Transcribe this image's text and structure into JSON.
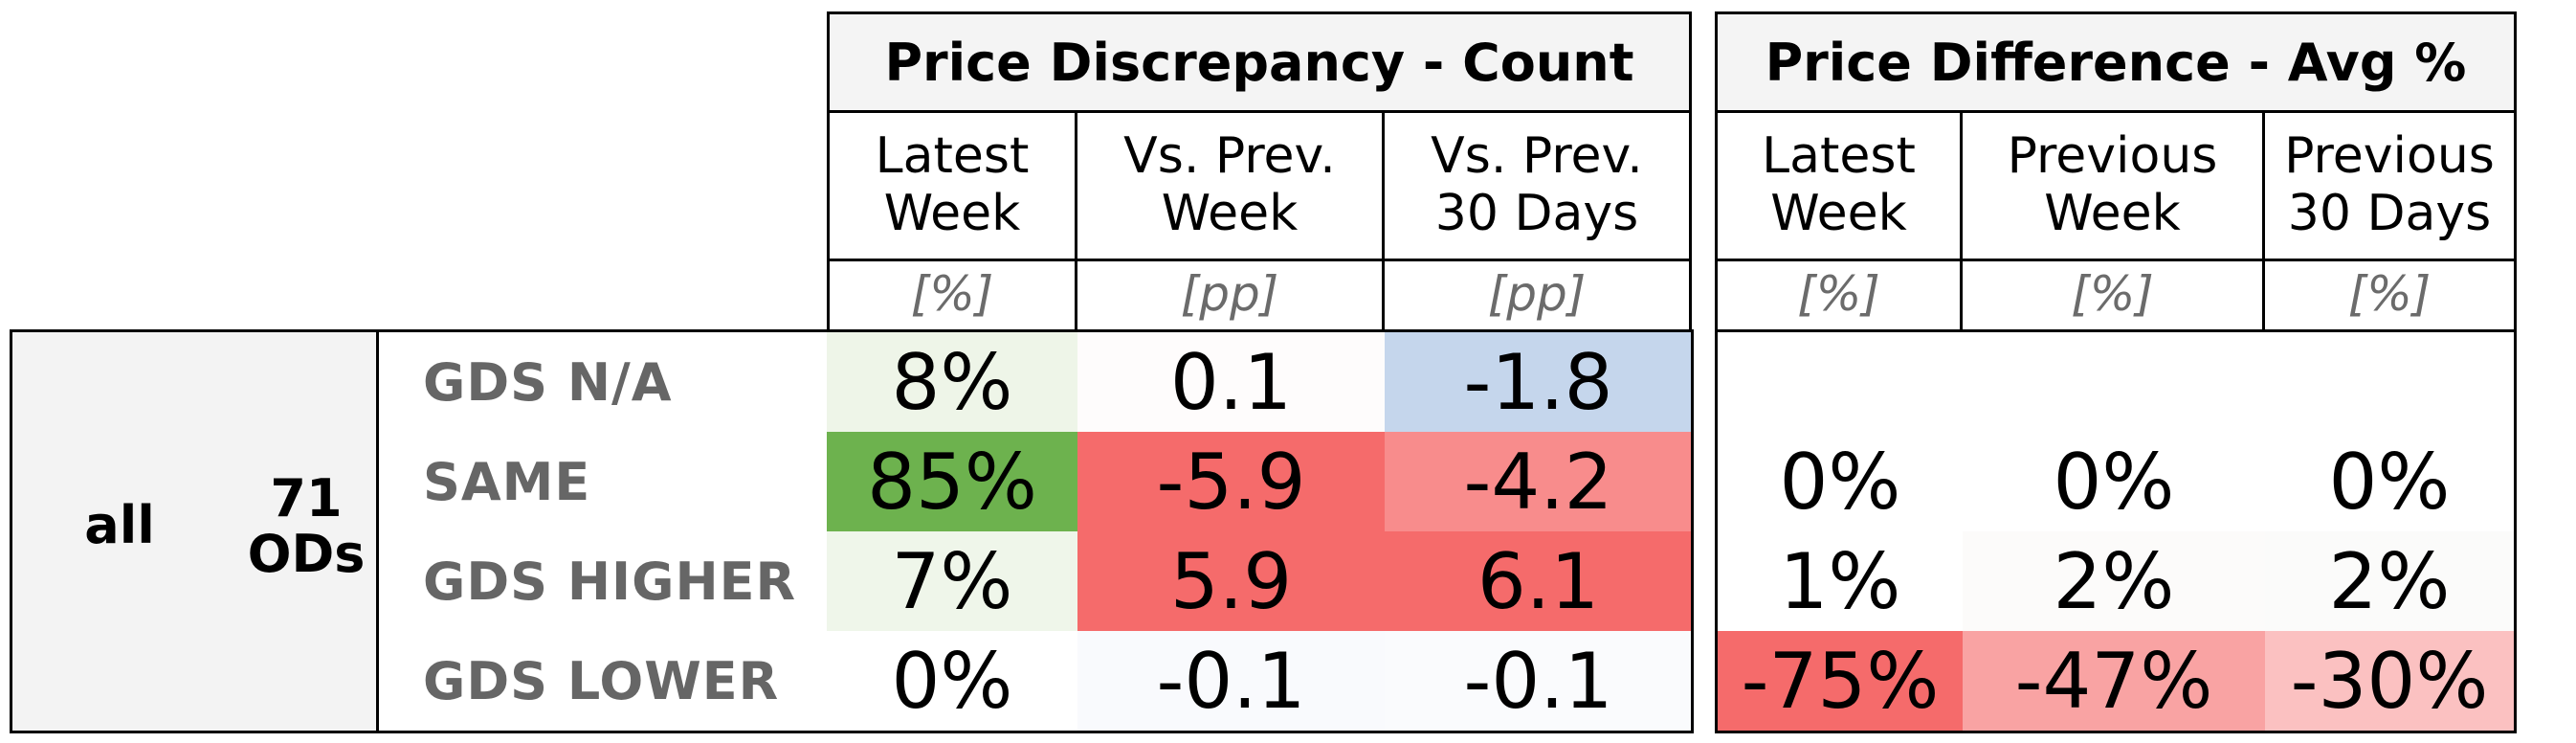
{
  "chart_data": {
    "type": "table",
    "groups": [
      {
        "title": "Price Discrepancy - Count",
        "columns": [
          {
            "label": "Latest\nWeek",
            "unit": "[%]"
          },
          {
            "label": "Vs. Prev.\nWeek",
            "unit": "[pp]"
          },
          {
            "label": "Vs. Prev.\n30 Days",
            "unit": "[pp]"
          }
        ]
      },
      {
        "title": "Price Difference - Avg %",
        "columns": [
          {
            "label": "Latest\nWeek",
            "unit": "[%]"
          },
          {
            "label": "Previous\nWeek",
            "unit": "[%]"
          },
          {
            "label": "Previous\n30 Days",
            "unit": "[%]"
          }
        ]
      }
    ],
    "segment": "all",
    "od_count": "71",
    "od_label": "ODs",
    "rows": [
      {
        "label": "GDS N/A",
        "count": [
          "8%",
          "0.1",
          "-1.8"
        ],
        "count_colors": [
          "#eef5e8",
          "#fefcfc",
          "#c5d6ec"
        ],
        "avg": [
          "",
          "",
          ""
        ],
        "avg_colors": [
          "#ffffff",
          "#ffffff",
          "#ffffff"
        ]
      },
      {
        "label": "SAME",
        "count": [
          "85%",
          "-5.9",
          "-4.2"
        ],
        "count_colors": [
          "#6db24e",
          "#f56b6b",
          "#f88c8c"
        ],
        "avg": [
          "0%",
          "0%",
          "0%"
        ],
        "avg_colors": [
          "#ffffff",
          "#ffffff",
          "#ffffff"
        ]
      },
      {
        "label": "GDS HIGHER",
        "count": [
          "7%",
          "5.9",
          "6.1"
        ],
        "count_colors": [
          "#eff6ea",
          "#f56b6b",
          "#f56b6b"
        ],
        "avg": [
          "1%",
          "2%",
          "2%"
        ],
        "avg_colors": [
          "#ffffff",
          "#fcfbfa",
          "#fbfbfa"
        ]
      },
      {
        "label": "GDS LOWER",
        "count": [
          "0%",
          "-0.1",
          "-0.1"
        ],
        "count_colors": [
          "#ffffff",
          "#f9fafd",
          "#fafbfd"
        ],
        "avg": [
          "-75%",
          "-47%",
          "-30%"
        ],
        "avg_colors": [
          "#f56b6b",
          "#f9a3a3",
          "#fbc1c1"
        ]
      }
    ]
  }
}
